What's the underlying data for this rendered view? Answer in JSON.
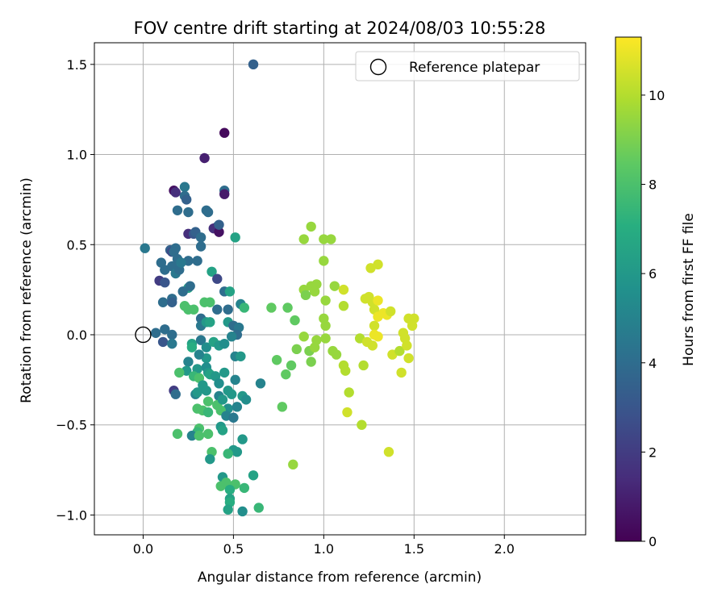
{
  "chart_data": {
    "type": "scatter",
    "title": "FOV centre drift starting at 2024/08/03 10:55:28",
    "xlabel": "Angular distance from reference (arcmin)",
    "ylabel": "Rotation from reference (arcmin)",
    "xlim": [
      -0.27,
      2.45
    ],
    "ylim": [
      -1.11,
      1.62
    ],
    "xticks": [
      0.0,
      0.5,
      1.0,
      1.5,
      2.0
    ],
    "xtick_labels": [
      "0.0",
      "0.5",
      "1.0",
      "1.5",
      "2.0"
    ],
    "yticks": [
      -1.0,
      -0.5,
      0.0,
      0.5,
      1.0,
      1.5
    ],
    "ytick_labels": [
      "−1.0",
      "−0.5",
      "0.0",
      "0.5",
      "1.0",
      "1.5"
    ],
    "grid": true,
    "colormap": "viridis",
    "colorbar": {
      "label": "Hours from first FF file",
      "range": [
        0,
        11.3
      ],
      "ticks": [
        0,
        2,
        4,
        6,
        8,
        10
      ],
      "tick_labels": [
        "0",
        "2",
        "4",
        "6",
        "8",
        "10"
      ]
    },
    "legend": {
      "position": "top-right",
      "entries": [
        {
          "label": "Reference platepar",
          "marker": "open-circle",
          "color": "#000000"
        }
      ]
    },
    "reference_point": {
      "x": 0.0,
      "y": 0.0
    },
    "points": [
      {
        "x": 0.61,
        "y": 1.5,
        "h": 3.5
      },
      {
        "x": 0.45,
        "y": 1.12,
        "h": 0.3
      },
      {
        "x": 0.34,
        "y": 0.98,
        "h": 1.0
      },
      {
        "x": 0.17,
        "y": 0.8,
        "h": 0.5
      },
      {
        "x": 0.18,
        "y": 0.79,
        "h": 1.5
      },
      {
        "x": 0.23,
        "y": 0.82,
        "h": 4.5
      },
      {
        "x": 0.23,
        "y": 0.77,
        "h": 4.0
      },
      {
        "x": 0.24,
        "y": 0.75,
        "h": 3.5
      },
      {
        "x": 0.45,
        "y": 0.8,
        "h": 4.0
      },
      {
        "x": 0.45,
        "y": 0.78,
        "h": 0.8
      },
      {
        "x": 0.19,
        "y": 0.69,
        "h": 4.0
      },
      {
        "x": 0.25,
        "y": 0.68,
        "h": 4.0
      },
      {
        "x": 0.35,
        "y": 0.69,
        "h": 4.0
      },
      {
        "x": 0.36,
        "y": 0.68,
        "h": 4.0
      },
      {
        "x": 0.41,
        "y": 0.6,
        "h": 4.0
      },
      {
        "x": 0.39,
        "y": 0.59,
        "h": 1.5
      },
      {
        "x": 0.42,
        "y": 0.57,
        "h": 0.5
      },
      {
        "x": 0.42,
        "y": 0.61,
        "h": 3.5
      },
      {
        "x": 0.25,
        "y": 0.56,
        "h": 1.5
      },
      {
        "x": 0.28,
        "y": 0.56,
        "h": 3.0
      },
      {
        "x": 0.29,
        "y": 0.57,
        "h": 3.5
      },
      {
        "x": 0.32,
        "y": 0.54,
        "h": 4.0
      },
      {
        "x": 0.32,
        "y": 0.49,
        "h": 4.0
      },
      {
        "x": 0.51,
        "y": 0.54,
        "h": 6.5
      },
      {
        "x": 0.01,
        "y": 0.48,
        "h": 4.5
      },
      {
        "x": 0.15,
        "y": 0.47,
        "h": 3.5
      },
      {
        "x": 0.16,
        "y": 0.46,
        "h": 2.5
      },
      {
        "x": 0.18,
        "y": 0.48,
        "h": 4.0
      },
      {
        "x": 0.17,
        "y": 0.46,
        "h": 4.0
      },
      {
        "x": 0.19,
        "y": 0.42,
        "h": 4.0
      },
      {
        "x": 0.1,
        "y": 0.4,
        "h": 4.0
      },
      {
        "x": 0.12,
        "y": 0.36,
        "h": 4.0
      },
      {
        "x": 0.16,
        "y": 0.38,
        "h": 4.0
      },
      {
        "x": 0.18,
        "y": 0.34,
        "h": 4.5
      },
      {
        "x": 0.2,
        "y": 0.36,
        "h": 4.0
      },
      {
        "x": 0.25,
        "y": 0.41,
        "h": 4.0
      },
      {
        "x": 0.3,
        "y": 0.41,
        "h": 4.0
      },
      {
        "x": 0.21,
        "y": 0.4,
        "h": 4.5
      },
      {
        "x": 0.09,
        "y": 0.3,
        "h": 2.0
      },
      {
        "x": 0.12,
        "y": 0.29,
        "h": 3.0
      },
      {
        "x": 0.25,
        "y": 0.26,
        "h": 6.5
      },
      {
        "x": 0.26,
        "y": 0.27,
        "h": 4.0
      },
      {
        "x": 0.38,
        "y": 0.35,
        "h": 6.5
      },
      {
        "x": 0.41,
        "y": 0.31,
        "h": 2.5
      },
      {
        "x": 0.45,
        "y": 0.24,
        "h": 4.0
      },
      {
        "x": 0.48,
        "y": 0.24,
        "h": 6.5
      },
      {
        "x": 0.22,
        "y": 0.24,
        "h": 4.0
      },
      {
        "x": 0.16,
        "y": 0.2,
        "h": 4.0
      },
      {
        "x": 0.11,
        "y": 0.18,
        "h": 4.0
      },
      {
        "x": 0.16,
        "y": 0.18,
        "h": 3.5
      },
      {
        "x": 0.23,
        "y": 0.16,
        "h": 8.0
      },
      {
        "x": 0.25,
        "y": 0.14,
        "h": 8.0
      },
      {
        "x": 0.28,
        "y": 0.14,
        "h": 8.0
      },
      {
        "x": 0.34,
        "y": 0.18,
        "h": 8.0
      },
      {
        "x": 0.37,
        "y": 0.18,
        "h": 8.0
      },
      {
        "x": 0.41,
        "y": 0.14,
        "h": 4.0
      },
      {
        "x": 0.47,
        "y": 0.14,
        "h": 4.0
      },
      {
        "x": 0.54,
        "y": 0.17,
        "h": 5.0
      },
      {
        "x": 0.56,
        "y": 0.15,
        "h": 7.5
      },
      {
        "x": 0.32,
        "y": 0.09,
        "h": 4.0
      },
      {
        "x": 0.32,
        "y": 0.05,
        "h": 4.5
      },
      {
        "x": 0.35,
        "y": 0.07,
        "h": 6.0
      },
      {
        "x": 0.37,
        "y": 0.07,
        "h": 6.5
      },
      {
        "x": 0.47,
        "y": 0.07,
        "h": 6.0
      },
      {
        "x": 0.5,
        "y": 0.05,
        "h": 4.0
      },
      {
        "x": 0.53,
        "y": 0.04,
        "h": 4.5
      },
      {
        "x": 0.52,
        "y": 0.0,
        "h": 4.0
      },
      {
        "x": 0.49,
        "y": -0.01,
        "h": 5.0
      },
      {
        "x": 0.07,
        "y": 0.01,
        "h": 4.0
      },
      {
        "x": 0.12,
        "y": 0.03,
        "h": 4.0
      },
      {
        "x": 0.16,
        "y": 0.0,
        "h": 4.0
      },
      {
        "x": 0.11,
        "y": -0.04,
        "h": 3.0
      },
      {
        "x": 0.16,
        "y": -0.05,
        "h": 4.5
      },
      {
        "x": 0.27,
        "y": -0.05,
        "h": 6.5
      },
      {
        "x": 0.27,
        "y": -0.07,
        "h": 7.0
      },
      {
        "x": 0.32,
        "y": -0.03,
        "h": 4.5
      },
      {
        "x": 0.35,
        "y": -0.07,
        "h": 5.5
      },
      {
        "x": 0.39,
        "y": -0.04,
        "h": 6.5
      },
      {
        "x": 0.42,
        "y": -0.06,
        "h": 6.0
      },
      {
        "x": 0.45,
        "y": -0.05,
        "h": 5.5
      },
      {
        "x": 0.51,
        "y": -0.12,
        "h": 5.0
      },
      {
        "x": 0.54,
        "y": -0.12,
        "h": 6.0
      },
      {
        "x": 0.35,
        "y": -0.13,
        "h": 6.0
      },
      {
        "x": 0.31,
        "y": -0.11,
        "h": 5.0
      },
      {
        "x": 0.25,
        "y": -0.15,
        "h": 5.0
      },
      {
        "x": 0.24,
        "y": -0.2,
        "h": 6.0
      },
      {
        "x": 0.3,
        "y": -0.19,
        "h": 6.0
      },
      {
        "x": 0.35,
        "y": -0.18,
        "h": 5.5
      },
      {
        "x": 0.36,
        "y": -0.21,
        "h": 6.0
      },
      {
        "x": 0.37,
        "y": -0.22,
        "h": 6.5
      },
      {
        "x": 0.4,
        "y": -0.23,
        "h": 6.0
      },
      {
        "x": 0.45,
        "y": -0.21,
        "h": 6.0
      },
      {
        "x": 0.2,
        "y": -0.21,
        "h": 8.0
      },
      {
        "x": 0.28,
        "y": -0.23,
        "h": 7.5
      },
      {
        "x": 0.31,
        "y": -0.24,
        "h": 8.0
      },
      {
        "x": 0.51,
        "y": -0.25,
        "h": 5.0
      },
      {
        "x": 0.42,
        "y": -0.27,
        "h": 5.5
      },
      {
        "x": 0.33,
        "y": -0.28,
        "h": 6.0
      },
      {
        "x": 0.17,
        "y": -0.31,
        "h": 2.0
      },
      {
        "x": 0.18,
        "y": -0.33,
        "h": 4.0
      },
      {
        "x": 0.29,
        "y": -0.33,
        "h": 5.0
      },
      {
        "x": 0.3,
        "y": -0.32,
        "h": 6.0
      },
      {
        "x": 0.35,
        "y": -0.31,
        "h": 6.0
      },
      {
        "x": 0.42,
        "y": -0.34,
        "h": 5.0
      },
      {
        "x": 0.47,
        "y": -0.31,
        "h": 6.0
      },
      {
        "x": 0.49,
        "y": -0.33,
        "h": 6.0
      },
      {
        "x": 0.55,
        "y": -0.34,
        "h": 6.0
      },
      {
        "x": 0.57,
        "y": -0.36,
        "h": 5.5
      },
      {
        "x": 0.65,
        "y": -0.27,
        "h": 5.0
      },
      {
        "x": 0.36,
        "y": -0.37,
        "h": 8.0
      },
      {
        "x": 0.41,
        "y": -0.39,
        "h": 8.0
      },
      {
        "x": 0.44,
        "y": -0.36,
        "h": 6.0
      },
      {
        "x": 0.47,
        "y": -0.41,
        "h": 5.5
      },
      {
        "x": 0.52,
        "y": -0.4,
        "h": 5.0
      },
      {
        "x": 0.3,
        "y": -0.41,
        "h": 8.0
      },
      {
        "x": 0.33,
        "y": -0.42,
        "h": 8.0
      },
      {
        "x": 0.36,
        "y": -0.43,
        "h": 7.5
      },
      {
        "x": 0.43,
        "y": -0.42,
        "h": 8.0
      },
      {
        "x": 0.46,
        "y": -0.45,
        "h": 5.0
      },
      {
        "x": 0.5,
        "y": -0.46,
        "h": 4.5
      },
      {
        "x": 0.43,
        "y": -0.51,
        "h": 6.0
      },
      {
        "x": 0.31,
        "y": -0.52,
        "h": 8.0
      },
      {
        "x": 0.3,
        "y": -0.54,
        "h": 7.5
      },
      {
        "x": 0.19,
        "y": -0.55,
        "h": 8.0
      },
      {
        "x": 0.27,
        "y": -0.56,
        "h": 5.0
      },
      {
        "x": 0.31,
        "y": -0.56,
        "h": 8.0
      },
      {
        "x": 0.36,
        "y": -0.55,
        "h": 8.0
      },
      {
        "x": 0.44,
        "y": -0.53,
        "h": 6.5
      },
      {
        "x": 0.55,
        "y": -0.58,
        "h": 6.0
      },
      {
        "x": 0.52,
        "y": -0.65,
        "h": 6.0
      },
      {
        "x": 0.5,
        "y": -0.64,
        "h": 6.0
      },
      {
        "x": 0.47,
        "y": -0.66,
        "h": 7.5
      },
      {
        "x": 0.38,
        "y": -0.65,
        "h": 8.0
      },
      {
        "x": 0.37,
        "y": -0.69,
        "h": 6.0
      },
      {
        "x": 0.44,
        "y": -0.79,
        "h": 6.0
      },
      {
        "x": 0.43,
        "y": -0.84,
        "h": 8.0
      },
      {
        "x": 0.46,
        "y": -0.82,
        "h": 8.0
      },
      {
        "x": 0.51,
        "y": -0.83,
        "h": 8.0
      },
      {
        "x": 0.56,
        "y": -0.85,
        "h": 7.5
      },
      {
        "x": 0.61,
        "y": -0.78,
        "h": 6.5
      },
      {
        "x": 0.48,
        "y": -0.86,
        "h": 7.0
      },
      {
        "x": 0.48,
        "y": -0.91,
        "h": 6.5
      },
      {
        "x": 0.48,
        "y": -0.93,
        "h": 7.0
      },
      {
        "x": 0.47,
        "y": -0.97,
        "h": 6.5
      },
      {
        "x": 0.55,
        "y": -0.98,
        "h": 5.5
      },
      {
        "x": 0.64,
        "y": -0.96,
        "h": 7.5
      },
      {
        "x": 0.71,
        "y": 0.15,
        "h": 8.5
      },
      {
        "x": 0.8,
        "y": 0.15,
        "h": 8.5
      },
      {
        "x": 0.84,
        "y": 0.08,
        "h": 8.5
      },
      {
        "x": 0.74,
        "y": -0.14,
        "h": 8.5
      },
      {
        "x": 0.79,
        "y": -0.22,
        "h": 8.5
      },
      {
        "x": 0.82,
        "y": -0.17,
        "h": 8.5
      },
      {
        "x": 0.77,
        "y": -0.4,
        "h": 8.5
      },
      {
        "x": 0.83,
        "y": -0.72,
        "h": 9.5
      },
      {
        "x": 0.85,
        "y": -0.08,
        "h": 9.0
      },
      {
        "x": 0.89,
        "y": -0.01,
        "h": 9.5
      },
      {
        "x": 0.92,
        "y": -0.09,
        "h": 9.0
      },
      {
        "x": 0.93,
        "y": -0.15,
        "h": 9.0
      },
      {
        "x": 0.95,
        "y": -0.07,
        "h": 9.5
      },
      {
        "x": 0.96,
        "y": -0.03,
        "h": 9.5
      },
      {
        "x": 0.89,
        "y": 0.53,
        "h": 9.5
      },
      {
        "x": 0.93,
        "y": 0.6,
        "h": 9.5
      },
      {
        "x": 1.0,
        "y": 0.53,
        "h": 9.5
      },
      {
        "x": 1.04,
        "y": 0.53,
        "h": 9.5
      },
      {
        "x": 1.0,
        "y": 0.41,
        "h": 9.5
      },
      {
        "x": 0.89,
        "y": 0.25,
        "h": 9.5
      },
      {
        "x": 0.93,
        "y": 0.27,
        "h": 9.5
      },
      {
        "x": 0.96,
        "y": 0.28,
        "h": 9.5
      },
      {
        "x": 0.95,
        "y": 0.24,
        "h": 9.5
      },
      {
        "x": 0.9,
        "y": 0.22,
        "h": 9.0
      },
      {
        "x": 1.06,
        "y": 0.27,
        "h": 9.5
      },
      {
        "x": 1.01,
        "y": 0.19,
        "h": 9.5
      },
      {
        "x": 1.0,
        "y": 0.09,
        "h": 9.5
      },
      {
        "x": 1.01,
        "y": 0.05,
        "h": 9.5
      },
      {
        "x": 1.01,
        "y": -0.02,
        "h": 9.5
      },
      {
        "x": 1.05,
        "y": -0.09,
        "h": 9.5
      },
      {
        "x": 1.07,
        "y": -0.11,
        "h": 9.5
      },
      {
        "x": 1.11,
        "y": -0.17,
        "h": 10.0
      },
      {
        "x": 1.12,
        "y": -0.2,
        "h": 10.0
      },
      {
        "x": 1.11,
        "y": 0.25,
        "h": 10.5
      },
      {
        "x": 1.11,
        "y": 0.16,
        "h": 10.0
      },
      {
        "x": 1.14,
        "y": -0.32,
        "h": 10.0
      },
      {
        "x": 1.13,
        "y": -0.43,
        "h": 10.5
      },
      {
        "x": 1.21,
        "y": -0.5,
        "h": 10.0
      },
      {
        "x": 1.2,
        "y": -0.02,
        "h": 10.0
      },
      {
        "x": 1.22,
        "y": -0.17,
        "h": 10.0
      },
      {
        "x": 1.24,
        "y": -0.04,
        "h": 10.5
      },
      {
        "x": 1.23,
        "y": 0.2,
        "h": 10.5
      },
      {
        "x": 1.25,
        "y": 0.21,
        "h": 10.5
      },
      {
        "x": 1.27,
        "y": 0.18,
        "h": 10.5
      },
      {
        "x": 1.28,
        "y": 0.14,
        "h": 10.5
      },
      {
        "x": 1.3,
        "y": 0.19,
        "h": 11.0
      },
      {
        "x": 1.26,
        "y": 0.37,
        "h": 10.5
      },
      {
        "x": 1.3,
        "y": 0.39,
        "h": 10.5
      },
      {
        "x": 1.28,
        "y": 0.05,
        "h": 10.5
      },
      {
        "x": 1.3,
        "y": 0.1,
        "h": 11.0
      },
      {
        "x": 1.28,
        "y": 0.0,
        "h": 11.0
      },
      {
        "x": 1.3,
        "y": -0.01,
        "h": 11.0
      },
      {
        "x": 1.27,
        "y": -0.06,
        "h": 10.5
      },
      {
        "x": 1.33,
        "y": 0.12,
        "h": 11.0
      },
      {
        "x": 1.35,
        "y": 0.11,
        "h": 11.0
      },
      {
        "x": 1.37,
        "y": 0.13,
        "h": 10.5
      },
      {
        "x": 1.38,
        "y": -0.11,
        "h": 10.5
      },
      {
        "x": 1.42,
        "y": -0.09,
        "h": 10.0
      },
      {
        "x": 1.43,
        "y": -0.21,
        "h": 10.5
      },
      {
        "x": 1.46,
        "y": -0.06,
        "h": 10.5
      },
      {
        "x": 1.47,
        "y": 0.09,
        "h": 10.5
      },
      {
        "x": 1.5,
        "y": 0.09,
        "h": 10.5
      },
      {
        "x": 1.49,
        "y": 0.05,
        "h": 10.5
      },
      {
        "x": 1.44,
        "y": 0.01,
        "h": 10.5
      },
      {
        "x": 1.45,
        "y": -0.02,
        "h": 10.5
      },
      {
        "x": 1.47,
        "y": -0.13,
        "h": 10.5
      },
      {
        "x": 1.36,
        "y": -0.65,
        "h": 10.5
      }
    ]
  }
}
